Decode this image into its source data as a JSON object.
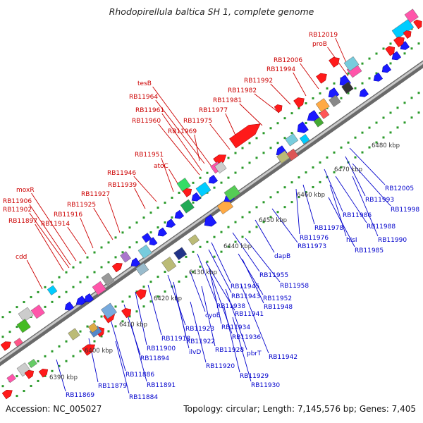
{
  "title": "Rhodopirellula baltica SH 1, complete genome",
  "footer": {
    "accession": "Accession: NC_005027",
    "stats": "Topology: circular; Length: 7,145,576 bp; Genes: 7,405"
  },
  "colors": {
    "forward_gene": "#ff1a1a",
    "reverse_gene": "#1a1aff",
    "backbone": "#999999",
    "tick_dot": "#2a9a2a",
    "forward_label": "#cc0000",
    "reverse_label": "#0000cc"
  },
  "kbp_ticks": [
    "6390 kbp",
    "6400 kbp",
    "6410 kbp",
    "6420 kbp",
    "6430 kbp",
    "6440 kbp",
    "6450 kbp",
    "6460 kbp",
    "6470 kbp",
    "6480 kbp"
  ],
  "forward_labels": [
    "RB12019",
    "proB",
    "RB12006",
    "RB11994",
    "RB11992",
    "RB11982",
    "RB11981",
    "RB11977",
    "tesB",
    "RB11964",
    "RB11961",
    "RB11960",
    "RB11969",
    "RB11975",
    "RB11951",
    "atoC",
    "RB11946",
    "RB11939",
    "moxR",
    "RB11927",
    "RB11906",
    "RB11925",
    "RB11902",
    "RB11916",
    "RB11897",
    "RB11914",
    "cdd"
  ],
  "reverse_labels": [
    "RB12005",
    "RB11993",
    "RB11998",
    "RB11986",
    "RB11988",
    "RB11978",
    "RB11976",
    "hisI",
    "RB11990",
    "RB11973",
    "RB11985",
    "dapB",
    "RB11955",
    "RB11958",
    "RB11945",
    "RB11952",
    "RB11943",
    "RB11948",
    "RB11938",
    "RB11941",
    "cyoE",
    "RB11934",
    "RB11923",
    "RB11936",
    "RB11918",
    "RB11922",
    "RB11928",
    "pbrT",
    "RB11942",
    "RB11900",
    "ilvD",
    "RB11894",
    "RB11920",
    "RB11929",
    "RB11886",
    "RB11930",
    "RB11891",
    "RB11879",
    "RB11884",
    "RB11869"
  ]
}
